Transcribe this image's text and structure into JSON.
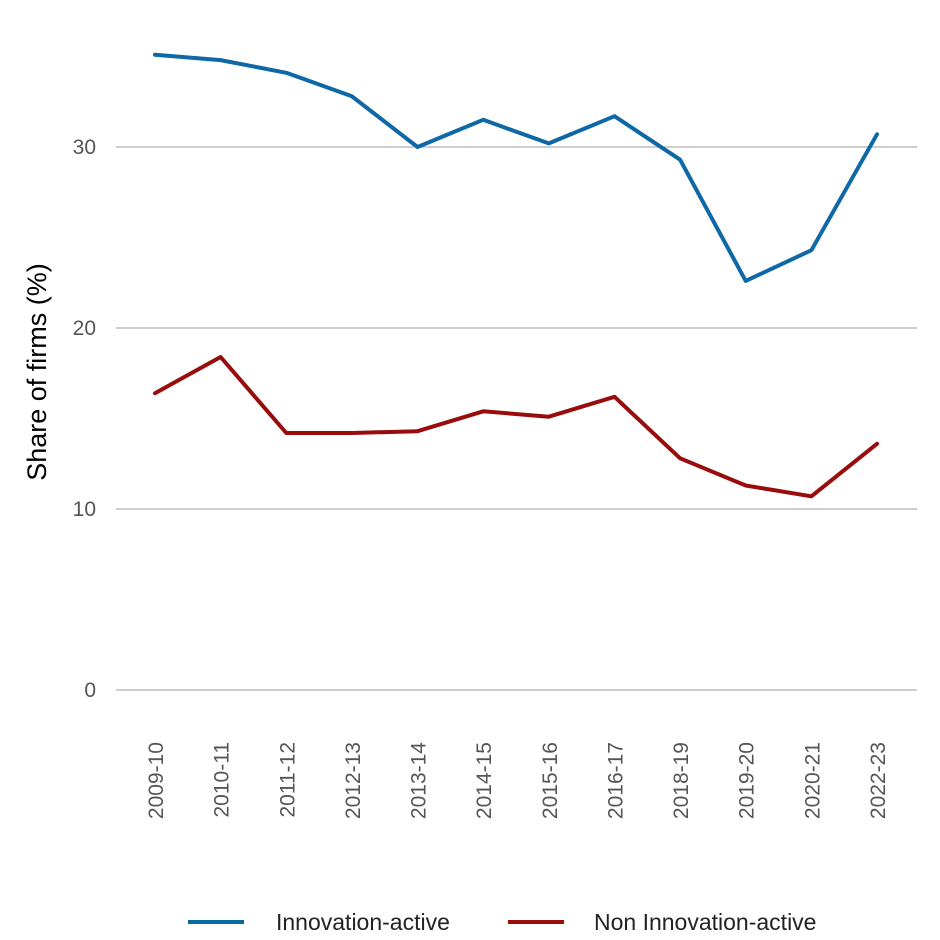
{
  "chart_data": {
    "type": "line",
    "title": "",
    "xlabel": "",
    "ylabel": "Share of firms (%)",
    "categories": [
      "2009-10",
      "2010-11",
      "2011-12",
      "2012-13",
      "2013-14",
      "2014-15",
      "2015-16",
      "2016-17",
      "2018-19",
      "2019-20",
      "2020-21",
      "2022-23"
    ],
    "ylim": [
      0,
      36
    ],
    "yticks": [
      0,
      10,
      20,
      30
    ],
    "grid": true,
    "legend_position": "bottom",
    "series": [
      {
        "name": "Innovation-active",
        "color": "#0e68a6",
        "values": [
          35.1,
          34.8,
          34.1,
          32.8,
          30.0,
          31.5,
          30.2,
          31.7,
          29.3,
          22.6,
          24.3,
          30.7
        ]
      },
      {
        "name": "Non Innovation-active",
        "color": "#980c0c",
        "values": [
          16.4,
          18.4,
          14.2,
          14.2,
          14.3,
          15.4,
          15.1,
          16.2,
          12.8,
          11.3,
          10.7,
          13.6
        ]
      }
    ]
  }
}
